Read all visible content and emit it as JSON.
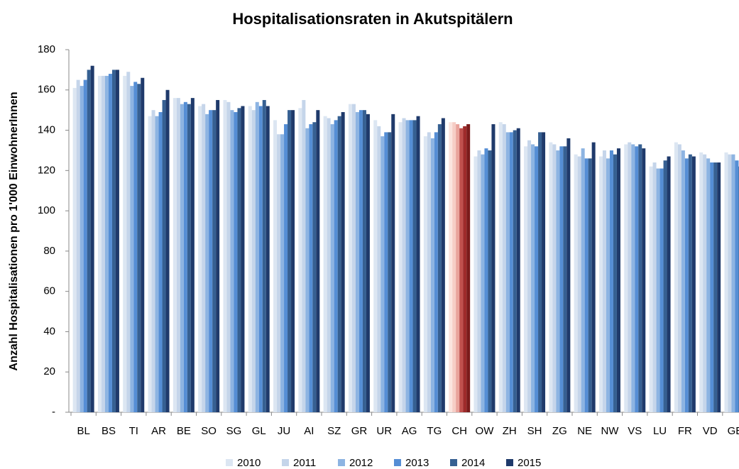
{
  "chart_data": {
    "type": "bar",
    "title": "Hospitalisationsraten in Akutspitälern",
    "y_label": "Anzahl Hospitalisationen pro 1'000 EinwohnerInnen",
    "categories": [
      "BL",
      "BS",
      "TI",
      "AR",
      "BE",
      "SO",
      "SG",
      "GL",
      "JU",
      "AI",
      "SZ",
      "GR",
      "UR",
      "AG",
      "TG",
      "CH",
      "OW",
      "ZH",
      "SH",
      "ZG",
      "NE",
      "NW",
      "VS",
      "LU",
      "FR",
      "VD",
      "GE"
    ],
    "series": [
      {
        "name": "2010",
        "color": "#dce6f2",
        "point_colors": {
          "15": "#fbe4df"
        },
        "values": [
          161,
          167,
          167,
          147,
          156,
          152,
          155,
          152,
          145,
          151,
          147,
          153,
          145,
          144,
          137,
          144,
          127,
          144,
          132,
          134,
          128,
          127,
          133,
          122,
          134,
          129,
          129
        ]
      },
      {
        "name": "2011",
        "color": "#c5d5ea",
        "point_colors": {
          "15": "#f6cdc6"
        },
        "values": [
          165,
          167,
          169,
          150,
          156,
          153,
          154,
          150,
          138,
          155,
          146,
          153,
          142,
          146,
          139,
          144,
          130,
          143,
          135,
          133,
          127,
          130,
          134,
          124,
          133,
          128,
          128
        ]
      },
      {
        "name": "2012",
        "color": "#8db4e2",
        "point_colors": {
          "15": "#e9a39c"
        },
        "values": [
          162,
          167,
          162,
          147,
          153,
          148,
          150,
          154,
          138,
          141,
          143,
          149,
          137,
          145,
          136,
          143,
          128,
          139,
          133,
          130,
          131,
          126,
          133,
          121,
          130,
          126,
          128
        ]
      },
      {
        "name": "2013",
        "color": "#558ed5",
        "point_colors": {
          "15": "#c0504d"
        },
        "values": [
          165,
          168,
          164,
          149,
          154,
          150,
          149,
          152,
          143,
          143,
          145,
          150,
          139,
          145,
          139,
          141,
          131,
          139,
          132,
          132,
          126,
          130,
          132,
          121,
          126,
          124,
          125
        ]
      },
      {
        "name": "2014",
        "color": "#366092",
        "point_colors": {
          "15": "#9e2a2a"
        },
        "values": [
          170,
          170,
          163,
          155,
          153,
          150,
          151,
          155,
          150,
          144,
          147,
          150,
          139,
          145,
          143,
          142,
          130,
          140,
          139,
          132,
          126,
          128,
          133,
          125,
          128,
          124,
          122
        ]
      },
      {
        "name": "2015",
        "color": "#1f3a6b",
        "point_colors": {
          "15": "#7a1b1b"
        },
        "values": [
          172,
          170,
          166,
          160,
          156,
          155,
          152,
          152,
          150,
          150,
          149,
          148,
          148,
          147,
          146,
          143,
          143,
          141,
          139,
          136,
          134,
          131,
          131,
          127,
          127,
          124,
          120
        ]
      }
    ],
    "ylim": [
      0,
      180
    ],
    "yticks": [
      {
        "value": 0,
        "label": "-"
      },
      20,
      40,
      60,
      80,
      100,
      120,
      140,
      160,
      180
    ],
    "grid": false
  }
}
